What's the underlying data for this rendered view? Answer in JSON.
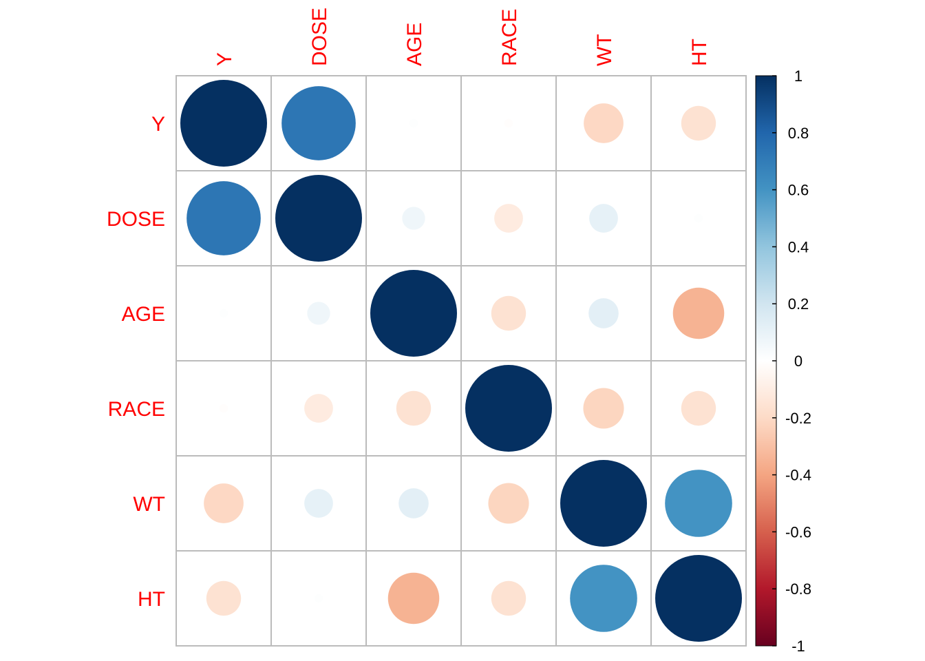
{
  "chart_data": {
    "type": "heatmap",
    "style": "corrplot-circle",
    "variables": [
      "Y",
      "DOSE",
      "AGE",
      "RACE",
      "WT",
      "HT"
    ],
    "matrix": [
      [
        1.0,
        0.73,
        0.01,
        -0.01,
        -0.21,
        -0.16
      ],
      [
        0.73,
        1.0,
        0.07,
        -0.11,
        0.11,
        0.01
      ],
      [
        0.01,
        0.07,
        1.0,
        -0.16,
        0.12,
        -0.35
      ],
      [
        -0.01,
        -0.11,
        -0.16,
        1.0,
        -0.22,
        -0.16
      ],
      [
        -0.21,
        0.11,
        0.12,
        -0.22,
        1.0,
        0.6
      ],
      [
        -0.16,
        0.01,
        -0.35,
        -0.16,
        0.6,
        1.0
      ]
    ],
    "colorbar": {
      "range": [
        -1,
        1
      ],
      "ticks": [
        "-1",
        "-0.8",
        "-0.6",
        "-0.4",
        "-0.2",
        "0",
        "0.2",
        "0.4",
        "0.6",
        "0.8",
        "1"
      ],
      "colors": [
        "#67001F",
        "#B2182B",
        "#D6604D",
        "#F4A582",
        "#FDDBC7",
        "#FFFFFF",
        "#D1E5F0",
        "#92C5DE",
        "#4393C3",
        "#2166AC",
        "#053061"
      ]
    },
    "label_color": "#FF0000",
    "grid": true
  }
}
